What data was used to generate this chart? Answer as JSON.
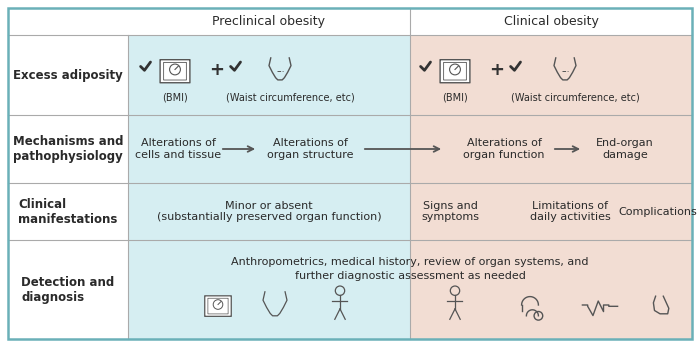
{
  "col_headers": [
    "Preclinical obesity",
    "Clinical obesity"
  ],
  "row_labels": [
    "Excess adiposity",
    "Mechanisms and\npathophysiology",
    "Clinical\nmanifestations",
    "Detection and\ndiagnosis"
  ],
  "preclinical_color": "#d6eef2",
  "clinical_color": "#f2ddd3",
  "header_bg": "#ffffff",
  "border_color": "#6ab0b8",
  "divider_color": "#aaaaaa",
  "text_color": "#2a2a2a",
  "label_color": "#1a1a1a",
  "icon_color": "#555555",
  "mechanisms_pre1": "Alterations of\ncells and tissue",
  "mechanisms_pre2": "Alterations of\norgan structure",
  "mechanisms_clin1": "Alterations of\norgan function",
  "mechanisms_clin2": "End-organ\ndamage",
  "clinical_pre": "Minor or absent\n(substantially preserved organ function)",
  "clinical_clin1": "Signs and\nsymptoms",
  "clinical_clin2": "Limitations of\ndaily activities",
  "clinical_clin3": "Complications",
  "detection_text1": "Anthropometrics, medical history, review of organ systems, and",
  "detection_text2": "further diagnostic assessment as needed",
  "bmi_label": "(BMI)",
  "waist_label": "(Waist circumference, etc)",
  "font_size_header": 9,
  "font_size_label": 8.5,
  "font_size_body": 8,
  "font_size_small": 7
}
